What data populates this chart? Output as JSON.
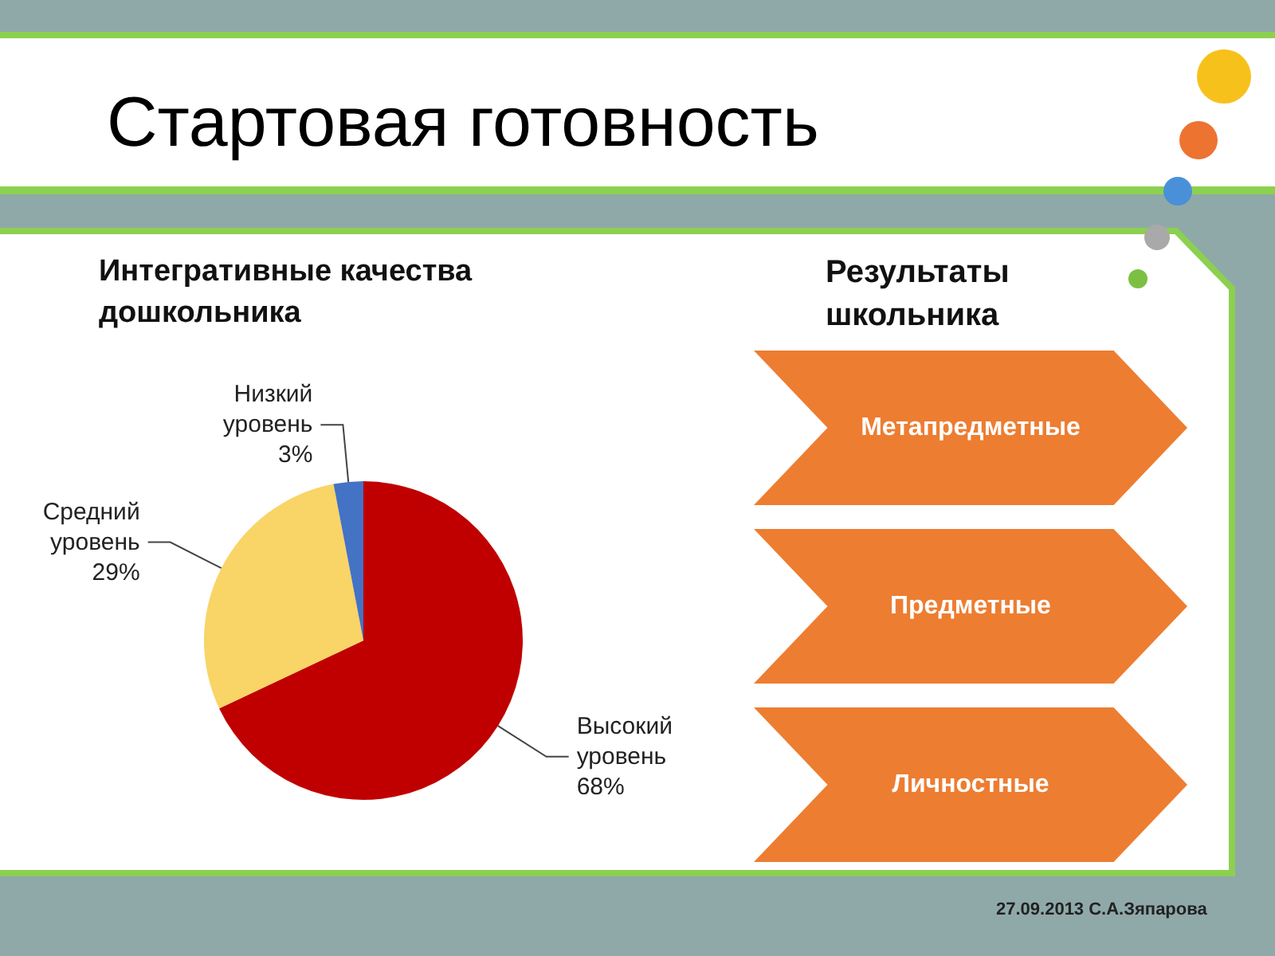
{
  "chart_data": [
    {
      "type": "pie",
      "title": "Стартовая готовность",
      "subtitle": "Интегративные качества дошкольника",
      "categories": [
        "Высокий уровень",
        "Средний уровень",
        "Низкий уровень"
      ],
      "values": [
        68,
        29,
        3
      ],
      "colors": [
        "#c00000",
        "#f9d466",
        "#4472c4"
      ],
      "value_labels": [
        "68%",
        "29%",
        "3%"
      ]
    },
    {
      "type": "other",
      "title": "Результаты школьника",
      "annotations": [
        "Метапредметные",
        "Предметные",
        "Личностные",
        "27.09.2013 С.А.Зяпарова"
      ]
    }
  ]
}
